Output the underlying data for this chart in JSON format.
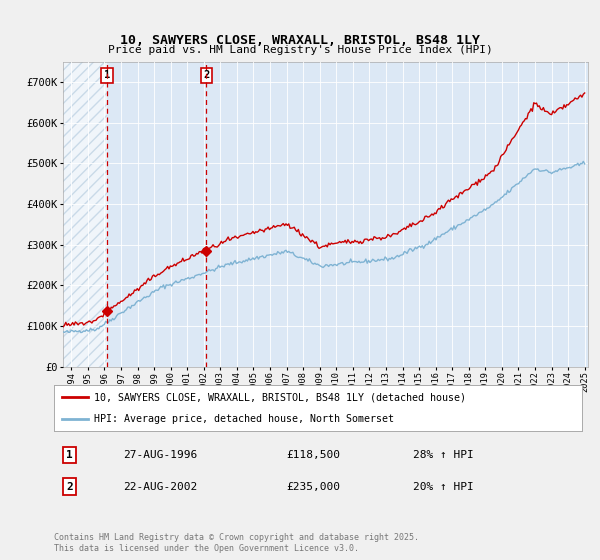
{
  "title1": "10, SAWYERS CLOSE, WRAXALL, BRISTOL, BS48 1LY",
  "title2": "Price paid vs. HM Land Registry's House Price Index (HPI)",
  "bg_color": "#f0f0f0",
  "plot_bg": "#dce8f5",
  "hatch_color": "#b0c8dc",
  "between_color": "#dce8f5",
  "red_line_label": "10, SAWYERS CLOSE, WRAXALL, BRISTOL, BS48 1LY (detached house)",
  "blue_line_label": "HPI: Average price, detached house, North Somerset",
  "transaction1_date": "27-AUG-1996",
  "transaction1_price": "£118,500",
  "transaction1_hpi": "28% ↑ HPI",
  "transaction2_date": "22-AUG-2002",
  "transaction2_price": "£235,000",
  "transaction2_hpi": "20% ↑ HPI",
  "footer": "Contains HM Land Registry data © Crown copyright and database right 2025.\nThis data is licensed under the Open Government Licence v3.0.",
  "ylim": [
    0,
    750000
  ],
  "yticks": [
    0,
    100000,
    200000,
    300000,
    400000,
    500000,
    600000,
    700000
  ],
  "ytick_labels": [
    "£0",
    "£100K",
    "£200K",
    "£300K",
    "£400K",
    "£500K",
    "£600K",
    "£700K"
  ],
  "xstart": 1994.0,
  "xend": 2025.7,
  "transaction1_x": 1996.65,
  "transaction2_x": 2002.65,
  "red_color": "#cc0000",
  "blue_color": "#7fb3d3"
}
